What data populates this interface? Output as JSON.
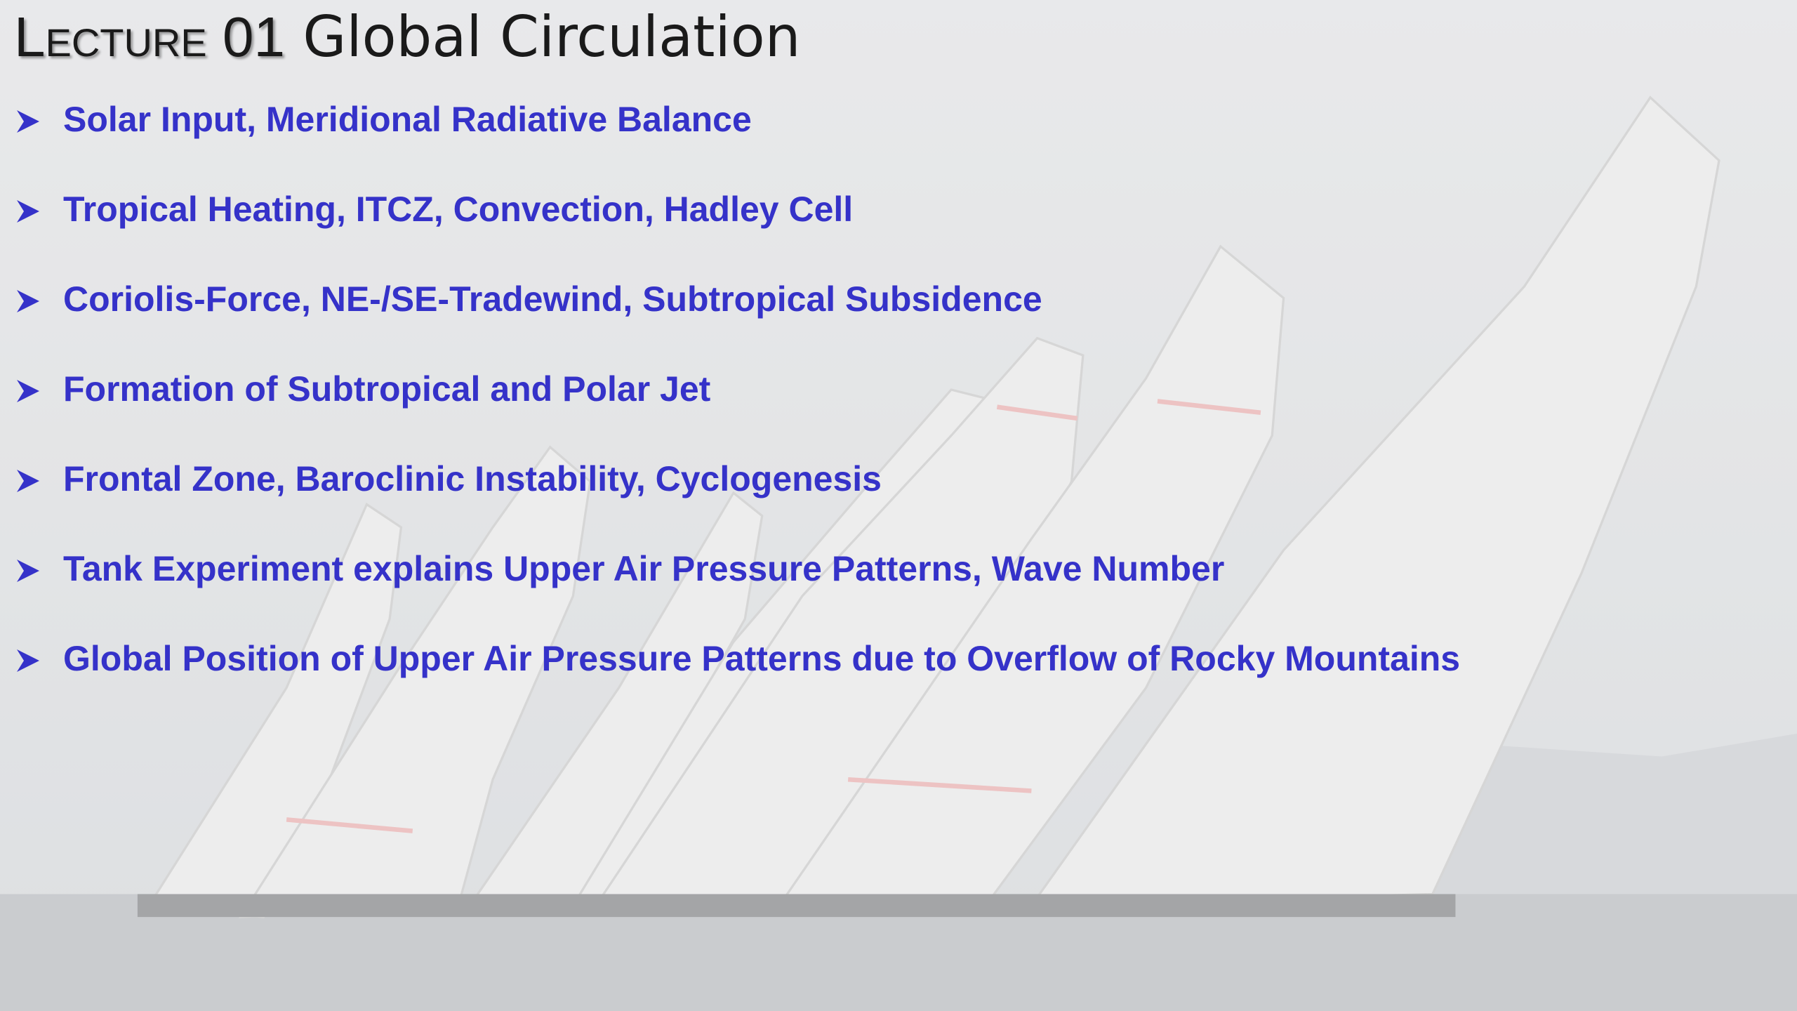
{
  "header": {
    "lecture": "Lecture 01",
    "title": "Global Circulation"
  },
  "bullets": [
    "Solar Input, Meridional Radiative Balance",
    "Tropical Heating, ITCZ, Convection, Hadley Cell",
    "Coriolis-Force, NE-/SE-Tradewind, Subtropical Subsidence",
    "Formation of Subtropical and Polar Jet",
    "Frontal Zone, Baroclinic Instability, Cyclogenesis",
    "Tank Experiment explains Upper Air Pressure Patterns, Wave Number",
    "Global Position of Upper Air Pressure Patterns due to Overflow of Rocky Mountains"
  ]
}
